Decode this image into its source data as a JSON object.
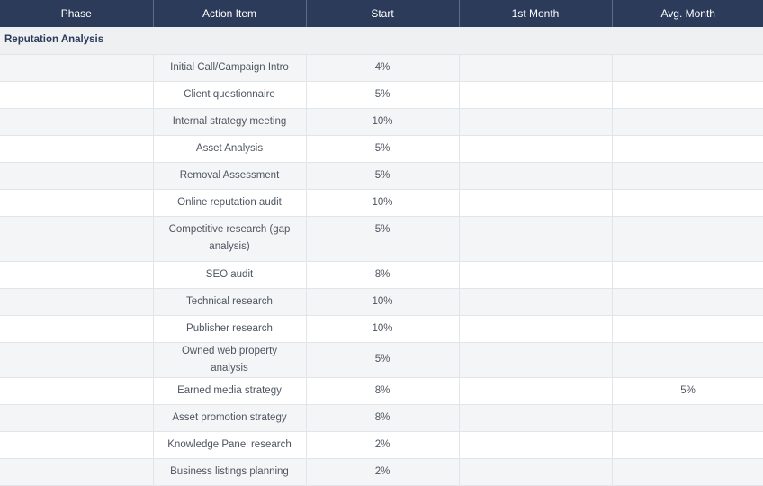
{
  "columns": [
    "Phase",
    "Action Item",
    "Start",
    "1st Month",
    "Avg. Month"
  ],
  "section_title": "Reputation Analysis",
  "rows": [
    {
      "phase": "",
      "action": "Initial Call/Campaign Intro",
      "start": "4%",
      "first_month": "",
      "avg_month": ""
    },
    {
      "phase": "",
      "action": "Client questionnaire",
      "start": "5%",
      "first_month": "",
      "avg_month": ""
    },
    {
      "phase": "",
      "action": "Internal strategy meeting",
      "start": "10%",
      "first_month": "",
      "avg_month": ""
    },
    {
      "phase": "",
      "action": "Asset Analysis",
      "start": "5%",
      "first_month": "",
      "avg_month": ""
    },
    {
      "phase": "",
      "action": "Removal Assessment",
      "start": "5%",
      "first_month": "",
      "avg_month": ""
    },
    {
      "phase": "",
      "action": "Online reputation audit",
      "start": "10%",
      "first_month": "",
      "avg_month": ""
    },
    {
      "phase": "",
      "action": "Competitive research (gap analysis)",
      "start": "5%",
      "first_month": "",
      "avg_month": ""
    },
    {
      "phase": "",
      "action": "SEO audit",
      "start": "8%",
      "first_month": "",
      "avg_month": ""
    },
    {
      "phase": "",
      "action": "Technical research",
      "start": "10%",
      "first_month": "",
      "avg_month": ""
    },
    {
      "phase": "",
      "action": "Publisher research",
      "start": "10%",
      "first_month": "",
      "avg_month": ""
    },
    {
      "phase": "",
      "action": "Owned web property analysis",
      "start": "5%",
      "first_month": "",
      "avg_month": ""
    },
    {
      "phase": "",
      "action": "Earned media strategy",
      "start": "8%",
      "first_month": "",
      "avg_month": "5%"
    },
    {
      "phase": "",
      "action": "Asset promotion strategy",
      "start": "8%",
      "first_month": "",
      "avg_month": ""
    },
    {
      "phase": "",
      "action": "Knowledge Panel research",
      "start": "2%",
      "first_month": "",
      "avg_month": ""
    },
    {
      "phase": "",
      "action": "Business listings planning",
      "start": "2%",
      "first_month": "",
      "avg_month": ""
    }
  ]
}
